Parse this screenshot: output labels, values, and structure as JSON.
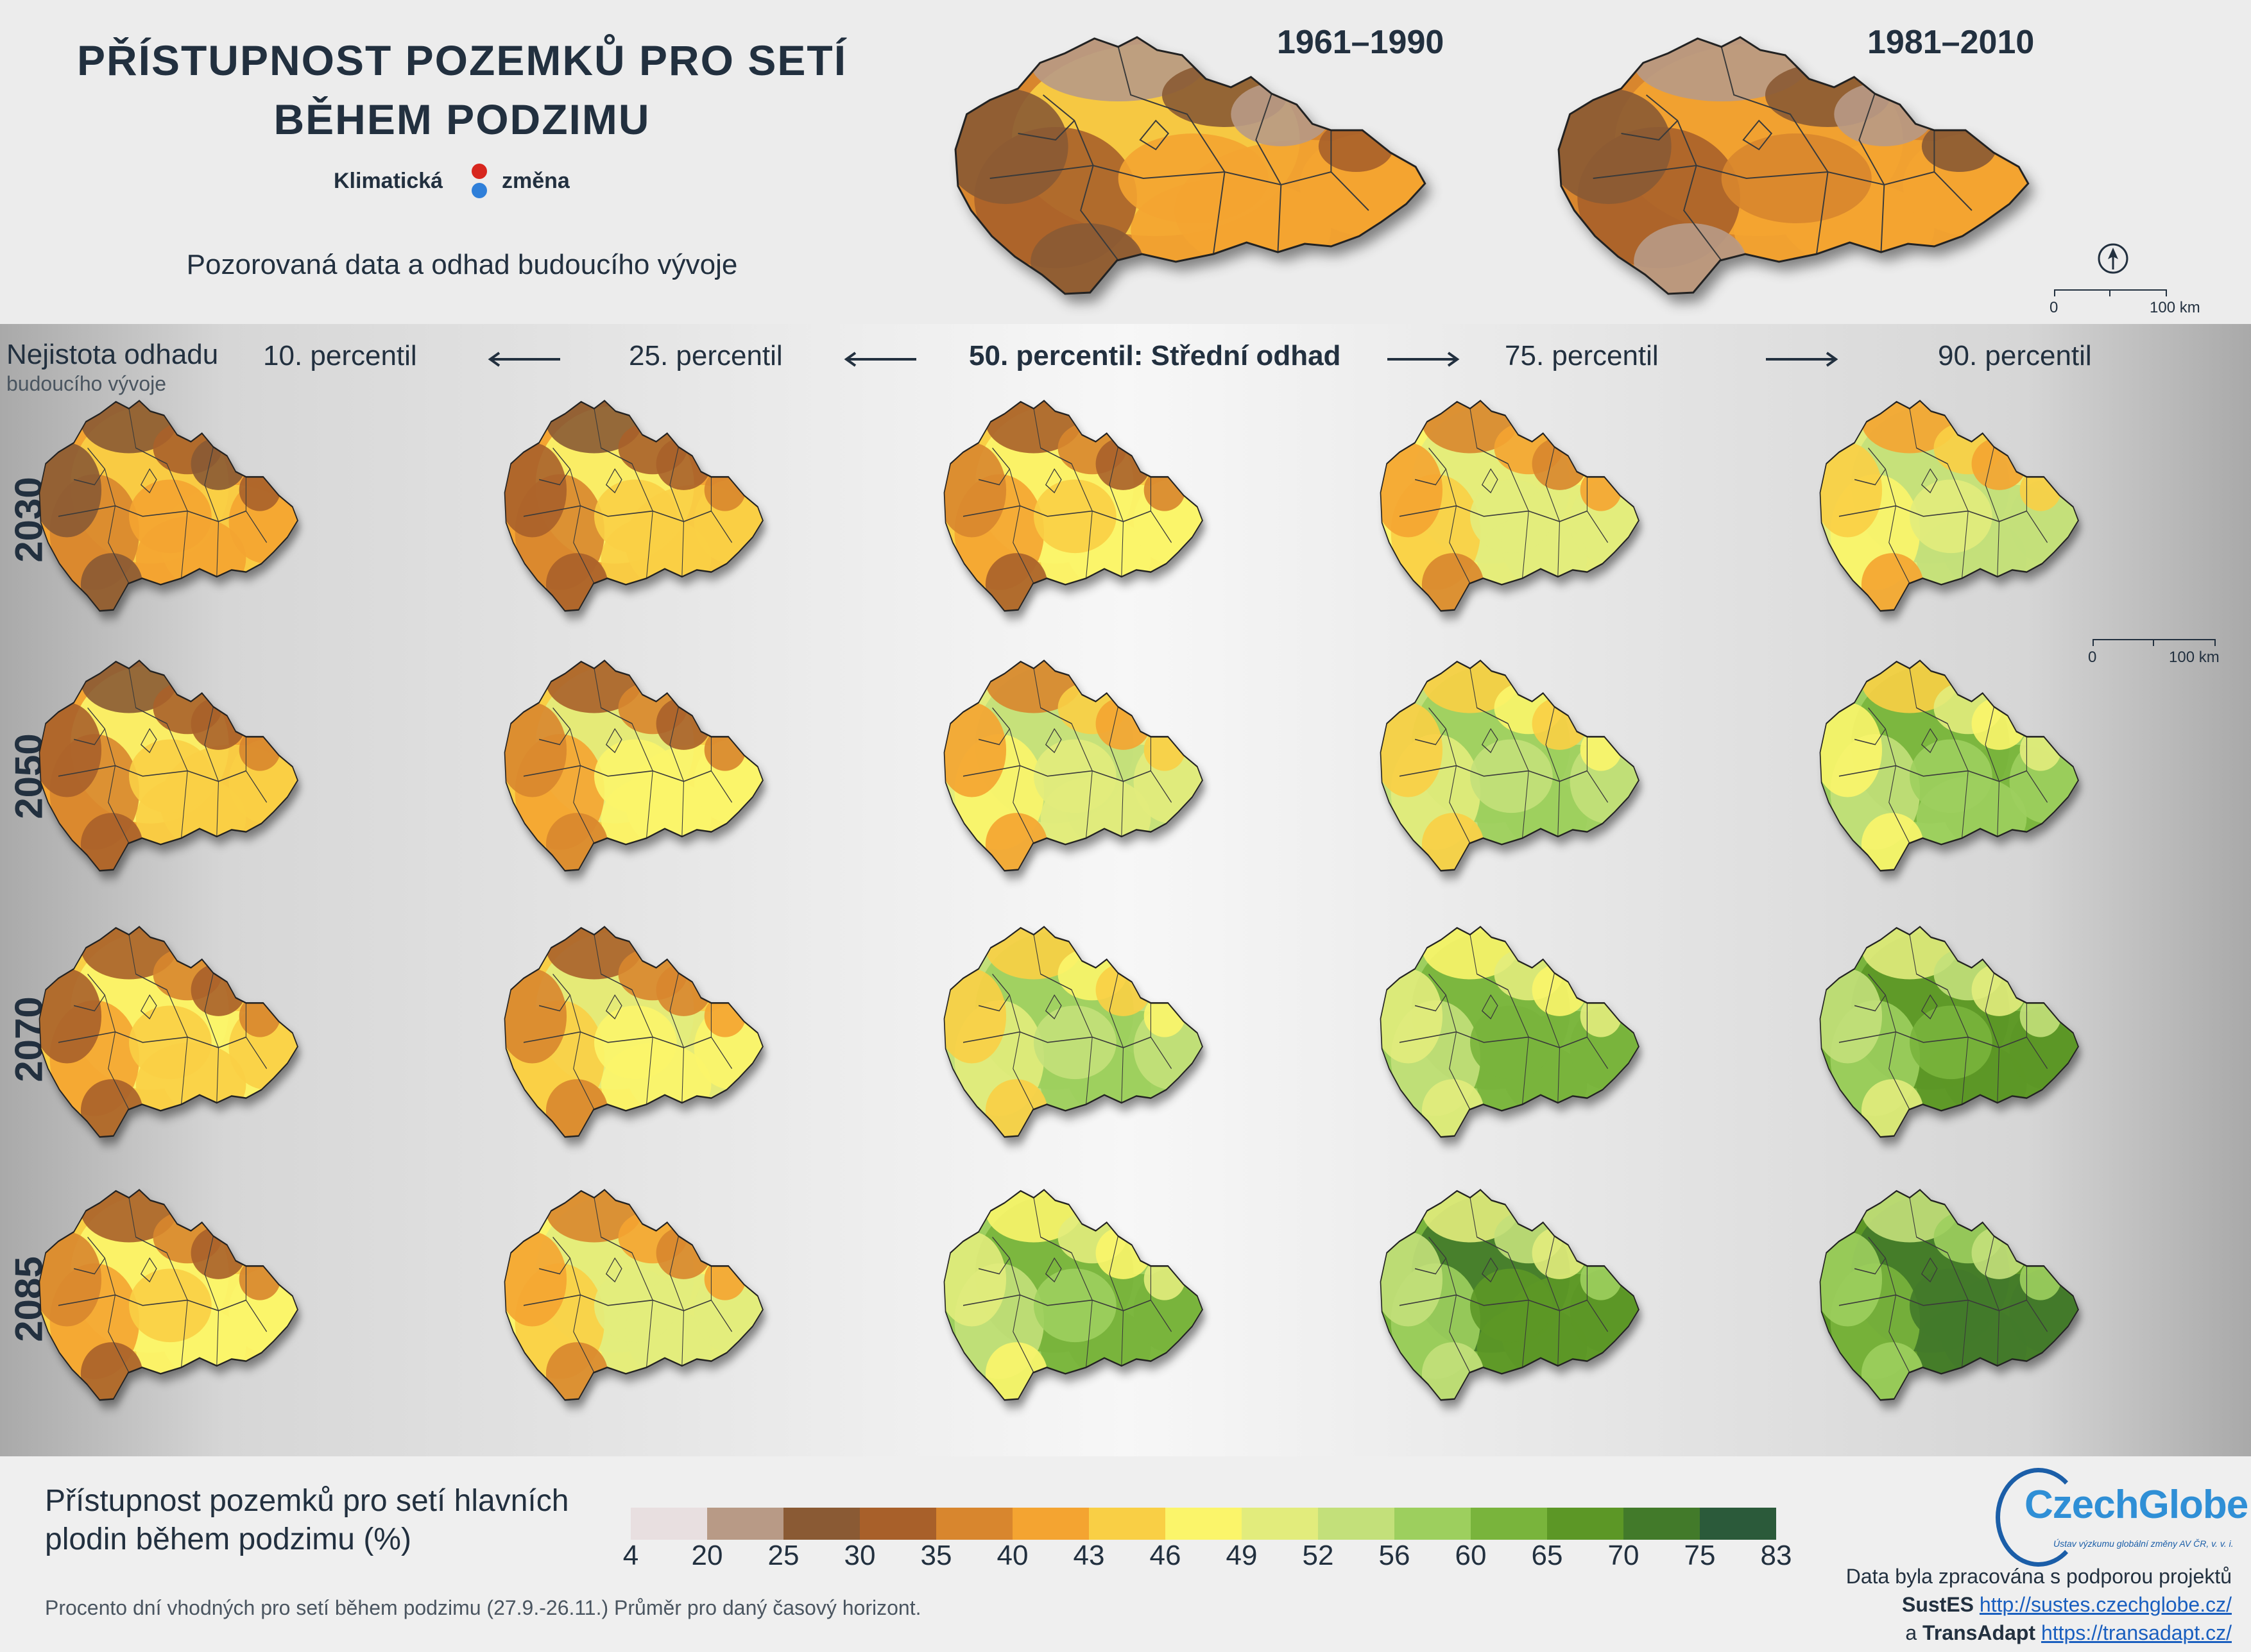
{
  "title": {
    "line1": "PŘÍSTUPNOST POZEMKŮ PRO SETÍ",
    "line2": "BĚHEM PODZIMU"
  },
  "brand": {
    "word1": "Klimatická",
    "word2": "změna"
  },
  "subtitle": "Pozorovaná data a odhad budoucího vývoje",
  "observed_periods": [
    "1961–1990",
    "1981–2010"
  ],
  "uncertainty": {
    "label": "Nejistota odhadu",
    "sublabel": "budoucího vývoje"
  },
  "percentile_columns": [
    "10. percentil",
    "25. percentil",
    "50. percentil: Střední odhad",
    "75. percentil",
    "90. percentil"
  ],
  "future_horizons": [
    "2030",
    "2050",
    "2070",
    "2085"
  ],
  "scale_bar": {
    "start": "0",
    "end": "100 km"
  },
  "legend": {
    "title_line1": "Přístupnost pozemků pro setí hlavních",
    "title_line2": "plodin během podzimu (%)",
    "ticks": [
      "4",
      "20",
      "25",
      "30",
      "35",
      "40",
      "43",
      "46",
      "49",
      "52",
      "56",
      "60",
      "65",
      "70",
      "75",
      "83"
    ],
    "colors": [
      "#e8dfe0",
      "#b89a86",
      "#8a5a34",
      "#a8602a",
      "#d8862e",
      "#f4a431",
      "#f9cf45",
      "#fbf56a",
      "#e2ec7c",
      "#c3e07a",
      "#9dcf5e",
      "#79b43c",
      "#5c9726",
      "#427a2a",
      "#2b5a3a"
    ]
  },
  "footnote": "Procento dní vhodných pro setí během podzimu (27.9.-26.11.) Průměr pro daný časový horizont.",
  "logo": {
    "name": "CzechGlobe",
    "tagline": "Ústav výzkumu globální změny AV ČR, v. v. i."
  },
  "credits": {
    "line1": "Data byla zpracována s podporou projektů",
    "project1": "SustES",
    "url1": "http://sustes.czechglobe.cz/",
    "and": "a",
    "project2": "TransAdapt",
    "url2": "https://transadapt.cz/"
  },
  "map_levels": {
    "1961–1990": [
      0.3,
      0.45
    ],
    "1981–2010": [
      0.28,
      0.43
    ],
    "2030": [
      0.33,
      0.38,
      0.42,
      0.5,
      0.56
    ],
    "2050": [
      0.38,
      0.44,
      0.54,
      0.62,
      0.68
    ],
    "2070": [
      0.4,
      0.46,
      0.62,
      0.72,
      0.78
    ],
    "2085": [
      0.42,
      0.5,
      0.7,
      0.8,
      0.86
    ]
  }
}
